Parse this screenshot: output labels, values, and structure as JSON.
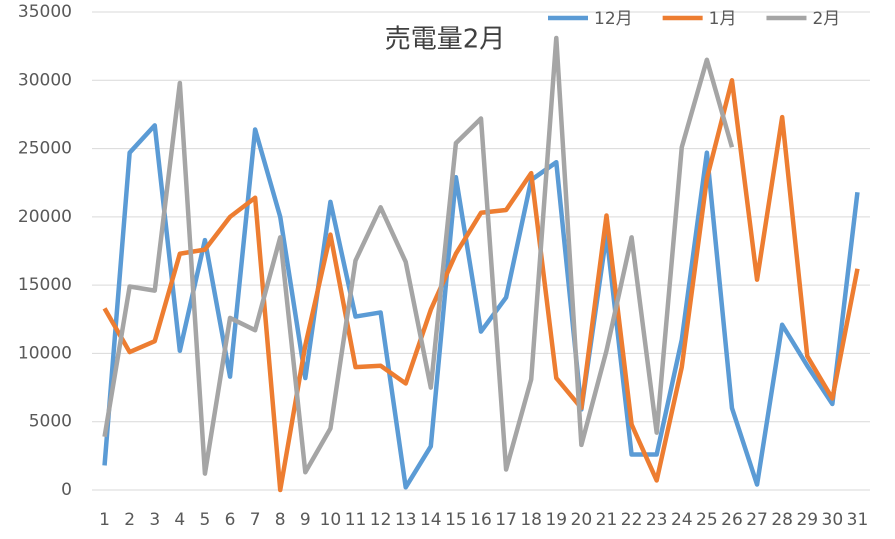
{
  "chart_data": {
    "type": "line",
    "title": "売電量2月",
    "categories": [
      "1",
      "2",
      "3",
      "4",
      "5",
      "6",
      "7",
      "8",
      "9",
      "10",
      "11",
      "12",
      "13",
      "14",
      "15",
      "16",
      "17",
      "18",
      "19",
      "20",
      "21",
      "22",
      "23",
      "24",
      "25",
      "26",
      "27",
      "28",
      "29",
      "30",
      "31"
    ],
    "series": [
      {
        "name": "12月",
        "color": "#5b9bd5",
        "values": [
          1800,
          24700,
          26700,
          10200,
          18300,
          8300,
          26400,
          20000,
          8200,
          21100,
          12700,
          13000,
          200,
          3200,
          22900,
          11600,
          14100,
          22700,
          24000,
          5900,
          18700,
          2600,
          2600,
          11000,
          24700,
          6000,
          400,
          12100,
          9100,
          6300,
          21800
        ]
      },
      {
        "name": "1月",
        "color": "#ed7d31",
        "values": [
          13300,
          10100,
          10900,
          17300,
          17600,
          20000,
          21400,
          0,
          10600,
          18700,
          9000,
          9100,
          7800,
          13200,
          17300,
          20300,
          20500,
          23200,
          8200,
          6000,
          20100,
          4800,
          700,
          9000,
          22800,
          30000,
          15400,
          27300,
          9800,
          6700,
          16200
        ]
      },
      {
        "name": "2月",
        "color": "#a5a5a5",
        "values": [
          3900,
          14900,
          14600,
          29800,
          1200,
          12600,
          11700,
          18500,
          1300,
          4500,
          16800,
          20700,
          16700,
          7500,
          25400,
          27200,
          1500,
          8100,
          33100,
          3300,
          10200,
          18500,
          4200,
          25100,
          31500,
          25100,
          null,
          null,
          null,
          null,
          null
        ]
      }
    ],
    "ylim": [
      0,
      35000
    ],
    "yticks": [
      0,
      5000,
      10000,
      15000,
      20000,
      25000,
      30000,
      35000
    ],
    "grid": true,
    "legend": "top-right"
  }
}
